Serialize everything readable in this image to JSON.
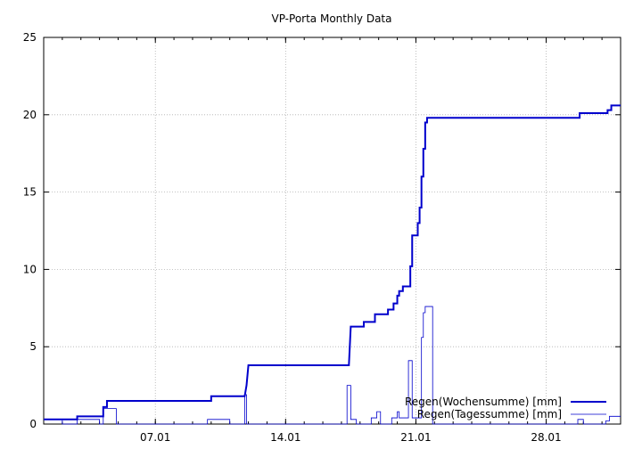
{
  "chart_data": {
    "type": "line",
    "title": "VP-Porta Monthly Data",
    "xlabel": "",
    "ylabel": "",
    "x_unit": "day of January",
    "xlim": [
      1,
      32
    ],
    "ylim": [
      0,
      25
    ],
    "grid": true,
    "legend_position": "bottom-right",
    "x_ticks": [
      {
        "value": 7,
        "label": "07.01"
      },
      {
        "value": 14,
        "label": "14.01"
      },
      {
        "value": 21,
        "label": "21.01"
      },
      {
        "value": 28,
        "label": "28.01"
      }
    ],
    "y_ticks": [
      {
        "value": 0,
        "label": "0"
      },
      {
        "value": 5,
        "label": "5"
      },
      {
        "value": 10,
        "label": "10"
      },
      {
        "value": 15,
        "label": "15"
      },
      {
        "value": 20,
        "label": "20"
      },
      {
        "value": 25,
        "label": "25"
      }
    ],
    "series": [
      {
        "name": "Regen(Wochensumme) [mm]",
        "color": "#0000cc",
        "style": "thick-step",
        "points": [
          [
            1.0,
            0.3
          ],
          [
            2.8,
            0.3
          ],
          [
            2.8,
            0.5
          ],
          [
            4.2,
            0.5
          ],
          [
            4.2,
            1.1
          ],
          [
            4.4,
            1.1
          ],
          [
            4.4,
            1.5
          ],
          [
            10.0,
            1.5
          ],
          [
            10.0,
            1.8
          ],
          [
            11.8,
            1.8
          ],
          [
            11.9,
            2.5
          ],
          [
            12.0,
            3.8
          ],
          [
            17.4,
            3.8
          ],
          [
            17.5,
            6.3
          ],
          [
            18.2,
            6.3
          ],
          [
            18.2,
            6.6
          ],
          [
            18.8,
            6.6
          ],
          [
            18.8,
            7.1
          ],
          [
            19.5,
            7.1
          ],
          [
            19.5,
            7.4
          ],
          [
            19.8,
            7.4
          ],
          [
            19.8,
            7.8
          ],
          [
            20.0,
            7.8
          ],
          [
            20.0,
            8.3
          ],
          [
            20.1,
            8.3
          ],
          [
            20.1,
            8.6
          ],
          [
            20.3,
            8.6
          ],
          [
            20.3,
            8.9
          ],
          [
            20.7,
            8.9
          ],
          [
            20.7,
            10.2
          ],
          [
            20.8,
            10.2
          ],
          [
            20.8,
            12.2
          ],
          [
            21.1,
            12.2
          ],
          [
            21.1,
            13.0
          ],
          [
            21.2,
            13.0
          ],
          [
            21.2,
            14.0
          ],
          [
            21.3,
            14.0
          ],
          [
            21.3,
            16.0
          ],
          [
            21.4,
            16.0
          ],
          [
            21.4,
            17.8
          ],
          [
            21.5,
            17.8
          ],
          [
            21.5,
            19.5
          ],
          [
            21.6,
            19.5
          ],
          [
            21.6,
            19.8
          ],
          [
            29.8,
            19.8
          ],
          [
            29.8,
            20.1
          ],
          [
            31.3,
            20.1
          ],
          [
            31.3,
            20.3
          ],
          [
            31.5,
            20.3
          ],
          [
            31.5,
            20.6
          ],
          [
            32.0,
            20.6
          ]
        ]
      },
      {
        "name": "Regen(Tagessumme) [mm]",
        "color": "#0000cc",
        "style": "thin-step",
        "points": [
          [
            1.0,
            0.3
          ],
          [
            2.0,
            0.3
          ],
          [
            2.0,
            0.0
          ],
          [
            2.8,
            0.0
          ],
          [
            2.8,
            0.3
          ],
          [
            4.0,
            0.3
          ],
          [
            4.0,
            0.0
          ],
          [
            4.2,
            0.0
          ],
          [
            4.2,
            1.0
          ],
          [
            4.9,
            1.0
          ],
          [
            4.9,
            0.0
          ],
          [
            9.8,
            0.0
          ],
          [
            9.8,
            0.3
          ],
          [
            11.0,
            0.3
          ],
          [
            11.0,
            0.0
          ],
          [
            11.8,
            0.0
          ],
          [
            11.8,
            1.9
          ],
          [
            11.9,
            1.9
          ],
          [
            11.9,
            0.0
          ],
          [
            17.3,
            0.0
          ],
          [
            17.3,
            2.5
          ],
          [
            17.5,
            2.5
          ],
          [
            17.5,
            0.3
          ],
          [
            17.8,
            0.3
          ],
          [
            17.8,
            0.0
          ],
          [
            18.6,
            0.0
          ],
          [
            18.6,
            0.4
          ],
          [
            18.9,
            0.4
          ],
          [
            18.9,
            0.8
          ],
          [
            19.1,
            0.8
          ],
          [
            19.1,
            0.0
          ],
          [
            19.7,
            0.0
          ],
          [
            19.7,
            0.4
          ],
          [
            20.0,
            0.4
          ],
          [
            20.0,
            0.8
          ],
          [
            20.1,
            0.8
          ],
          [
            20.1,
            0.4
          ],
          [
            20.6,
            0.4
          ],
          [
            20.6,
            4.1
          ],
          [
            20.8,
            4.1
          ],
          [
            20.8,
            0.4
          ],
          [
            21.3,
            0.4
          ],
          [
            21.3,
            5.6
          ],
          [
            21.4,
            5.6
          ],
          [
            21.4,
            7.2
          ],
          [
            21.5,
            7.2
          ],
          [
            21.5,
            7.6
          ],
          [
            21.9,
            7.6
          ],
          [
            21.9,
            0.0
          ],
          [
            29.7,
            0.0
          ],
          [
            29.7,
            0.3
          ],
          [
            30.0,
            0.3
          ],
          [
            30.0,
            0.0
          ],
          [
            31.2,
            0.0
          ],
          [
            31.2,
            0.2
          ],
          [
            31.4,
            0.2
          ],
          [
            31.4,
            0.5
          ],
          [
            32.0,
            0.5
          ]
        ]
      }
    ]
  }
}
